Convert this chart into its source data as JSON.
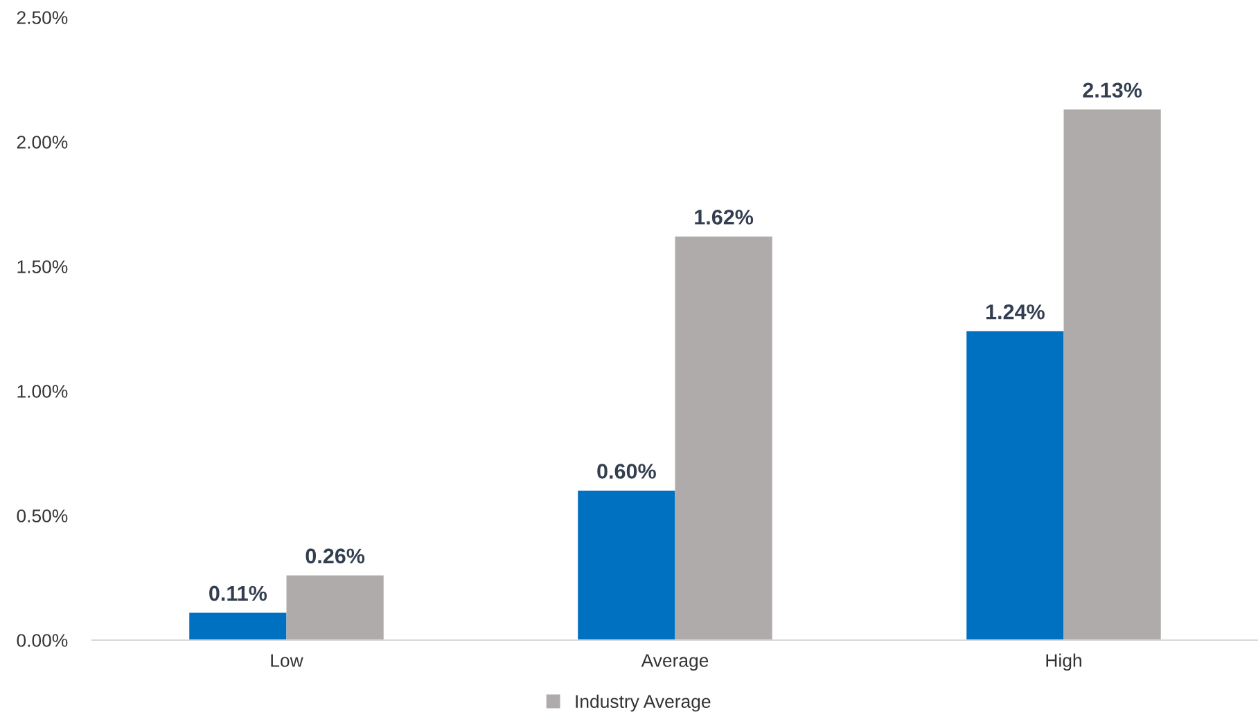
{
  "chart_data": {
    "type": "bar",
    "categories": [
      "Low",
      "Average",
      "High"
    ],
    "series": [
      {
        "color": "#0070c0",
        "values": [
          0.11,
          0.6,
          1.24
        ],
        "value_labels": [
          "0.11%",
          "0.60%",
          "1.24%"
        ]
      },
      {
        "name": "Industry Average",
        "color": "#afabab",
        "values": [
          0.26,
          1.62,
          2.13
        ],
        "value_labels": [
          "0.26%",
          "1.62%",
          "2.13%"
        ]
      }
    ],
    "ylim": [
      0,
      2.5
    ],
    "yticks": [
      {
        "value": 0,
        "label": "0.00%"
      },
      {
        "value": 0.5,
        "label": "0.50%"
      },
      {
        "value": 1.0,
        "label": "1.00%"
      },
      {
        "value": 1.5,
        "label": "1.50%"
      },
      {
        "value": 2.0,
        "label": "2.00%"
      },
      {
        "value": 2.5,
        "label": "2.50%"
      }
    ],
    "grid": false,
    "legend": "bottom"
  }
}
